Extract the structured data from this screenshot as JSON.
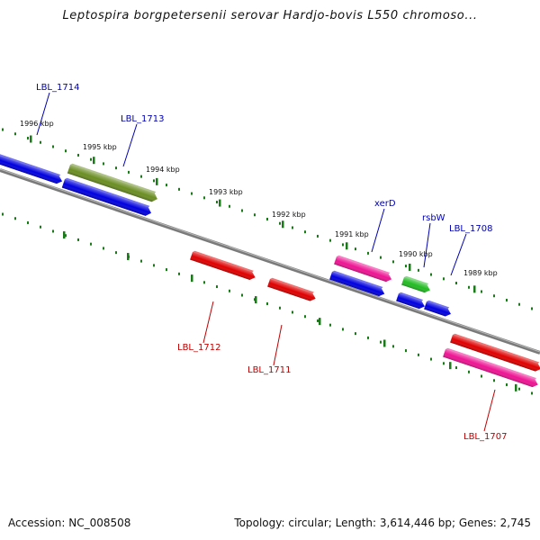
{
  "title": "Leptospira borgpetersenii serovar Hardjo-bovis L550 chromoso...",
  "footer": {
    "accession": "Accession: NC_008508",
    "summary": "Topology: circular; Length: 3,614,446 bp; Genes: 2,745"
  },
  "colors": {
    "backbone": "#7a7a7a",
    "tick": "#1a7a1a",
    "label_top": "#0000b0",
    "label_bottom": "#c00000"
  },
  "ruler": [
    {
      "label": "1996 kbp"
    },
    {
      "label": "1995 kbp"
    },
    {
      "label": "1994 kbp"
    },
    {
      "label": "1993 kbp"
    },
    {
      "label": "1992 kbp"
    },
    {
      "label": "1991 kbp"
    },
    {
      "label": "1990 kbp"
    },
    {
      "label": "1989 kbp"
    }
  ],
  "genes": [
    {
      "name": "gene-blue-left",
      "color": "#0000e0",
      "strand": "top"
    },
    {
      "name": "gene-olive",
      "color": "#6b8e23",
      "strand": "top"
    },
    {
      "name": "gene-blue-2",
      "color": "#0000e0",
      "strand": "top"
    },
    {
      "name": "gene-red-1712",
      "color": "#e00000",
      "strand": "bottom"
    },
    {
      "name": "gene-red-1711",
      "color": "#e00000",
      "strand": "bottom"
    },
    {
      "name": "gene-magenta-xerD",
      "color": "#ee1493",
      "strand": "top"
    },
    {
      "name": "gene-blue-3",
      "color": "#0000e0",
      "strand": "top"
    },
    {
      "name": "gene-green-rsbW",
      "color": "#22bb22",
      "strand": "top"
    },
    {
      "name": "gene-blue-4",
      "color": "#0000e0",
      "strand": "top"
    },
    {
      "name": "gene-blue-5",
      "color": "#0000e0",
      "strand": "top"
    },
    {
      "name": "gene-red-1707",
      "color": "#e00000",
      "strand": "bottom"
    },
    {
      "name": "gene-magenta-right",
      "color": "#ee1493",
      "strand": "bottom"
    }
  ],
  "labels": [
    {
      "text": "LBL_1714",
      "side": "top"
    },
    {
      "text": "LBL_1713",
      "side": "top"
    },
    {
      "text": "xerD",
      "side": "top"
    },
    {
      "text": "rsbW",
      "side": "top"
    },
    {
      "text": "LBL_1708",
      "side": "top"
    },
    {
      "text": "LBL_1712",
      "side": "bottom"
    },
    {
      "text": "LBL_1711",
      "side": "bottom"
    },
    {
      "text": "LBL_1707",
      "side": "bottom"
    }
  ]
}
